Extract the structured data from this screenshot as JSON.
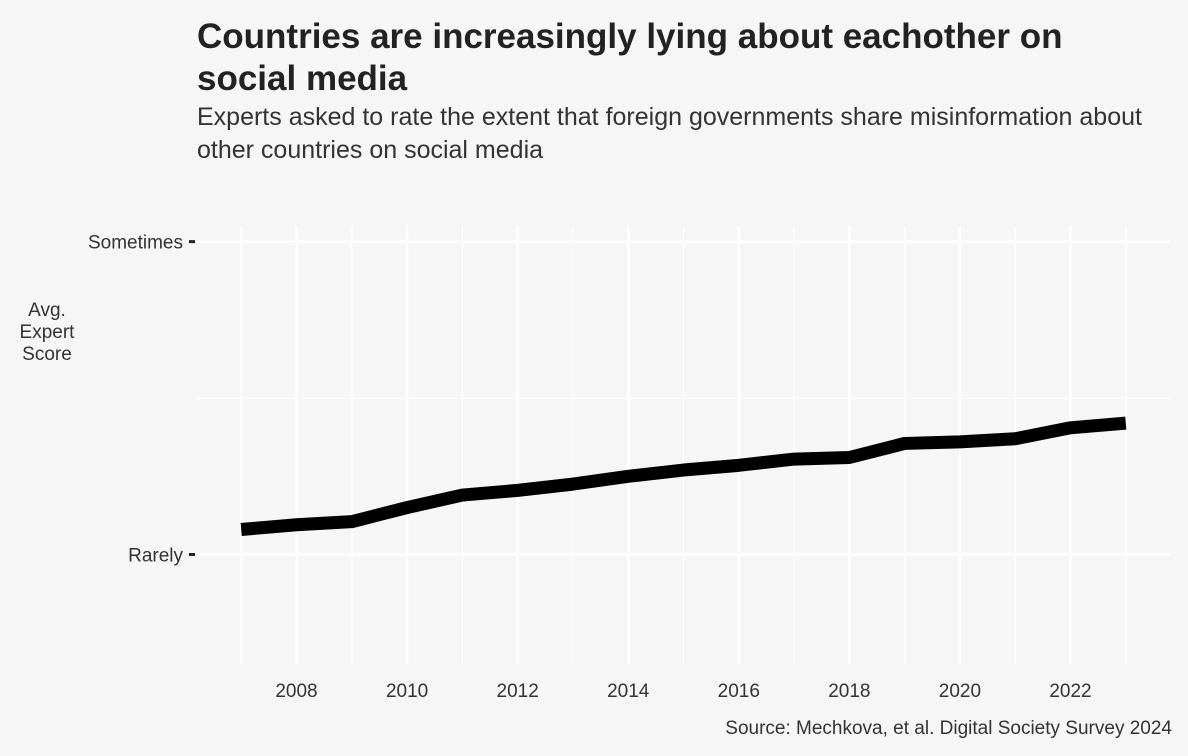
{
  "chart_data": {
    "type": "line",
    "title": "Countries are increasingly lying about eachother on social media",
    "subtitle": "Experts asked to rate the extent that foreign governments share misinformation about other countries on social media",
    "ylabel_lines": [
      "Avg.",
      "Expert",
      "Score"
    ],
    "source": "Source: Mechkova, et al. Digital Society Survey 2024",
    "y_ticks": [
      {
        "value": 3,
        "label": "Sometimes"
      },
      {
        "value": 2,
        "label": "Rarely"
      }
    ],
    "x_ticks": [
      2008,
      2010,
      2012,
      2014,
      2016,
      2018,
      2020,
      2022
    ],
    "xlim": [
      2006.2,
      2023.8
    ],
    "ylim": [
      1.65,
      3.05
    ],
    "grid": true,
    "series": [
      {
        "color": "#000000",
        "x": [
          2007,
          2008,
          2009,
          2010,
          2011,
          2012,
          2013,
          2014,
          2015,
          2016,
          2017,
          2018,
          2019,
          2020,
          2021,
          2022,
          2023
        ],
        "y": [
          2.08,
          2.095,
          2.105,
          2.15,
          2.19,
          2.205,
          2.225,
          2.25,
          2.27,
          2.285,
          2.305,
          2.31,
          2.355,
          2.36,
          2.37,
          2.405,
          2.42
        ]
      }
    ]
  }
}
